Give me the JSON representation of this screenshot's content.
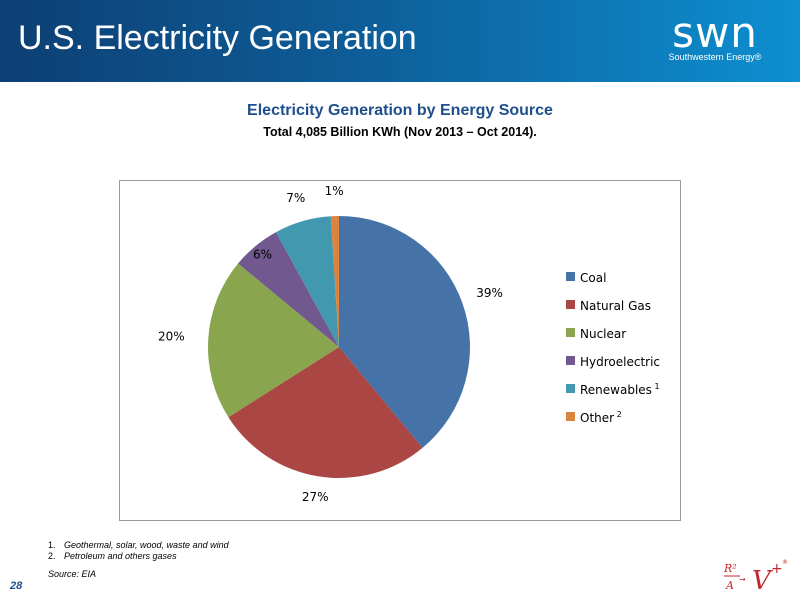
{
  "header": {
    "title": "U.S. Electricity Generation"
  },
  "logo": {
    "mark": "swn",
    "sub": "Southwestern Energy®"
  },
  "chart_data": {
    "type": "pie",
    "title": "Electricity Generation by Energy Source",
    "subtitle": "Total 4,085 Billion KWh (Nov 2013 – Oct 2014).",
    "slices": [
      {
        "label": "Coal",
        "sup": "",
        "value": 39,
        "display": "39%",
        "color": "#4572a7"
      },
      {
        "label": "Natural Gas",
        "sup": "",
        "value": 27,
        "display": "27%",
        "color": "#aa4643"
      },
      {
        "label": "Nuclear",
        "sup": "",
        "value": 20,
        "display": "20%",
        "color": "#89a54e"
      },
      {
        "label": "Hydroelectric",
        "sup": "",
        "value": 6,
        "display": "6%",
        "color": "#71588f"
      },
      {
        "label": "Renewables",
        "sup": "1",
        "value": 7,
        "display": "7%",
        "color": "#4198af"
      },
      {
        "label": "Other",
        "sup": "2",
        "value": 1,
        "display": "1%",
        "color": "#db843d"
      }
    ],
    "legend_position": "right"
  },
  "footnotes": [
    {
      "num": "1.",
      "text": "Geothermal, solar, wood, waste and wind"
    },
    {
      "num": "2.",
      "text": "Petroleum and others gases"
    }
  ],
  "source": "Source: EIA",
  "page_number": "28",
  "stamp": {
    "text": "R² A → V⁺"
  }
}
